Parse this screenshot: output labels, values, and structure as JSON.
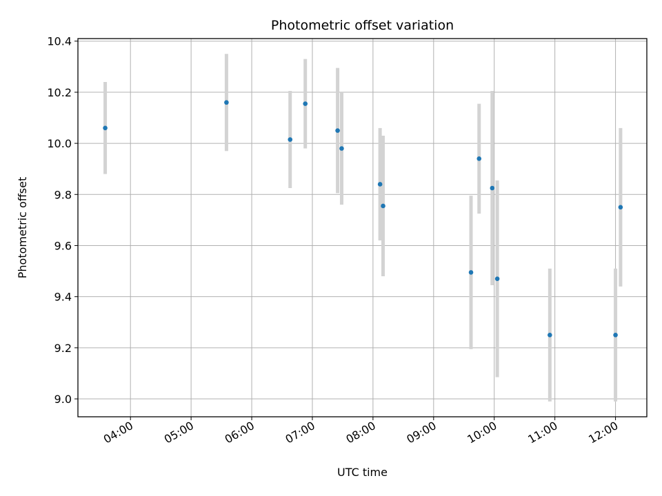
{
  "chart_data": {
    "type": "scatter",
    "title": "Photometric offset variation",
    "xlabel": "UTC time",
    "ylabel": "Photometric offset",
    "x_ticks": [
      "04:00",
      "05:00",
      "06:00",
      "07:00",
      "08:00",
      "09:00",
      "10:00",
      "11:00",
      "12:00"
    ],
    "xlim": [
      "03:08",
      "12:31"
    ],
    "ylim": [
      8.93,
      10.41
    ],
    "y_ticks": [
      9.0,
      9.2,
      9.4,
      9.6,
      9.8,
      10.0,
      10.2,
      10.4
    ],
    "y_tick_labels": [
      "9.0",
      "9.2",
      "9.4",
      "9.6",
      "9.8",
      "10.0",
      "10.2",
      "10.4"
    ],
    "grid": true,
    "marker_color": "#1f77b4",
    "errorbar_color": "#d3d3d3",
    "points": [
      {
        "x": "03:35",
        "y": 10.06,
        "err": 0.18
      },
      {
        "x": "05:35",
        "y": 10.16,
        "err": 0.19
      },
      {
        "x": "06:38",
        "y": 10.015,
        "err": 0.19
      },
      {
        "x": "06:53",
        "y": 10.155,
        "err": 0.175
      },
      {
        "x": "07:25",
        "y": 10.05,
        "err": 0.245
      },
      {
        "x": "07:29",
        "y": 9.98,
        "err": 0.22
      },
      {
        "x": "08:07",
        "y": 9.84,
        "err": 0.22
      },
      {
        "x": "08:10",
        "y": 9.755,
        "err": 0.275
      },
      {
        "x": "09:37",
        "y": 9.495,
        "err": 0.3
      },
      {
        "x": "09:45",
        "y": 9.94,
        "err": 0.215
      },
      {
        "x": "09:58",
        "y": 9.825,
        "err": 0.38
      },
      {
        "x": "10:03",
        "y": 9.47,
        "err": 0.385
      },
      {
        "x": "10:55",
        "y": 9.25,
        "err": 0.26
      },
      {
        "x": "12:00",
        "y": 9.25,
        "err": 0.26
      },
      {
        "x": "12:05",
        "y": 9.75,
        "err": 0.31
      }
    ]
  }
}
